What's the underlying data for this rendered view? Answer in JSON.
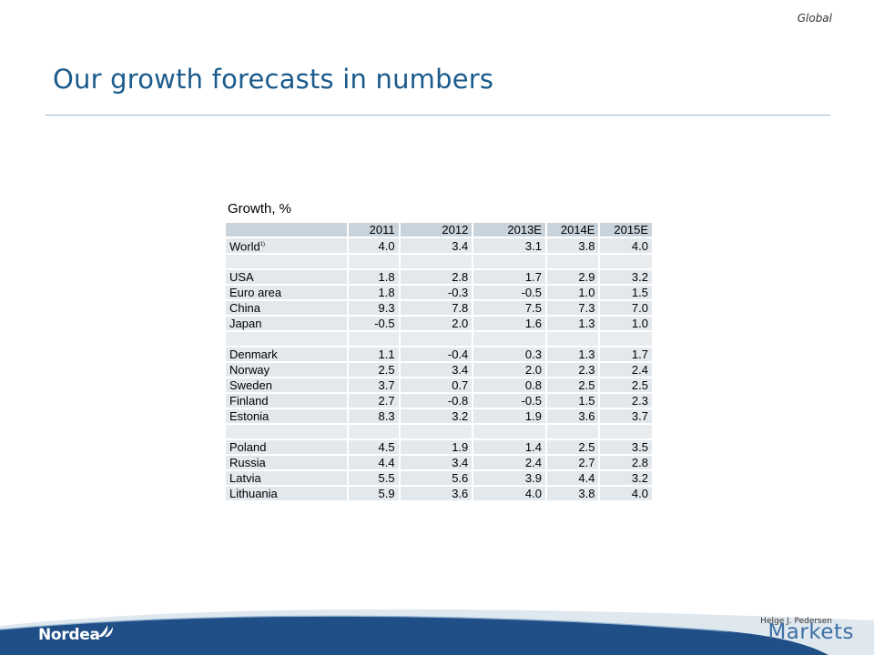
{
  "header": {
    "tag": "Global",
    "title": "Our growth forecasts in numbers"
  },
  "table": {
    "title": "Growth, %",
    "columns": [
      "",
      "2011",
      "2012",
      "2013E",
      "2014E",
      "2015E"
    ],
    "rows": [
      {
        "country": "World",
        "footnote": "1)",
        "values": [
          "4.0",
          "3.4",
          "3.1",
          "3.8",
          "4.0"
        ]
      },
      {
        "country": "",
        "values": [
          "",
          "",
          "",
          "",
          ""
        ]
      },
      {
        "country": "USA",
        "values": [
          "1.8",
          "2.8",
          "1.7",
          "2.9",
          "3.2"
        ]
      },
      {
        "country": "Euro area",
        "values": [
          "1.8",
          "-0.3",
          "-0.5",
          "1.0",
          "1.5"
        ]
      },
      {
        "country": "China",
        "values": [
          "9.3",
          "7.8",
          "7.5",
          "7.3",
          "7.0"
        ]
      },
      {
        "country": "Japan",
        "values": [
          "-0.5",
          "2.0",
          "1.6",
          "1.3",
          "1.0"
        ]
      },
      {
        "country": "",
        "values": [
          "",
          "",
          "",
          "",
          ""
        ]
      },
      {
        "country": "Denmark",
        "values": [
          "1.1",
          "-0.4",
          "0.3",
          "1.3",
          "1.7"
        ]
      },
      {
        "country": "Norway",
        "values": [
          "2.5",
          "3.4",
          "2.0",
          "2.3",
          "2.4"
        ]
      },
      {
        "country": "Sweden",
        "values": [
          "3.7",
          "0.7",
          "0.8",
          "2.5",
          "2.5"
        ]
      },
      {
        "country": "Finland",
        "values": [
          "2.7",
          "-0.8",
          "-0.5",
          "1.5",
          "2.3"
        ]
      },
      {
        "country": "Estonia",
        "values": [
          "8.3",
          "3.2",
          "1.9",
          "3.6",
          "3.7"
        ]
      },
      {
        "country": "",
        "values": [
          "",
          "",
          "",
          "",
          ""
        ]
      },
      {
        "country": "Poland",
        "values": [
          "4.5",
          "1.9",
          "1.4",
          "2.5",
          "3.5"
        ]
      },
      {
        "country": "Russia",
        "values": [
          "4.4",
          "3.4",
          "2.4",
          "2.7",
          "2.8"
        ]
      },
      {
        "country": "Latvia",
        "values": [
          "5.5",
          "5.6",
          "3.9",
          "4.4",
          "3.2"
        ]
      },
      {
        "country": "Lithuania",
        "values": [
          "5.9",
          "3.6",
          "4.0",
          "3.8",
          "4.0"
        ]
      }
    ]
  },
  "footer": {
    "author": "Helge J. Pedersen",
    "brand": "Nordea",
    "markets": "Markets",
    "colors": {
      "wave_dark": "#1f4f86",
      "wave_light": "#dfe7ef",
      "markets_blue": "#3d6fa3"
    }
  }
}
